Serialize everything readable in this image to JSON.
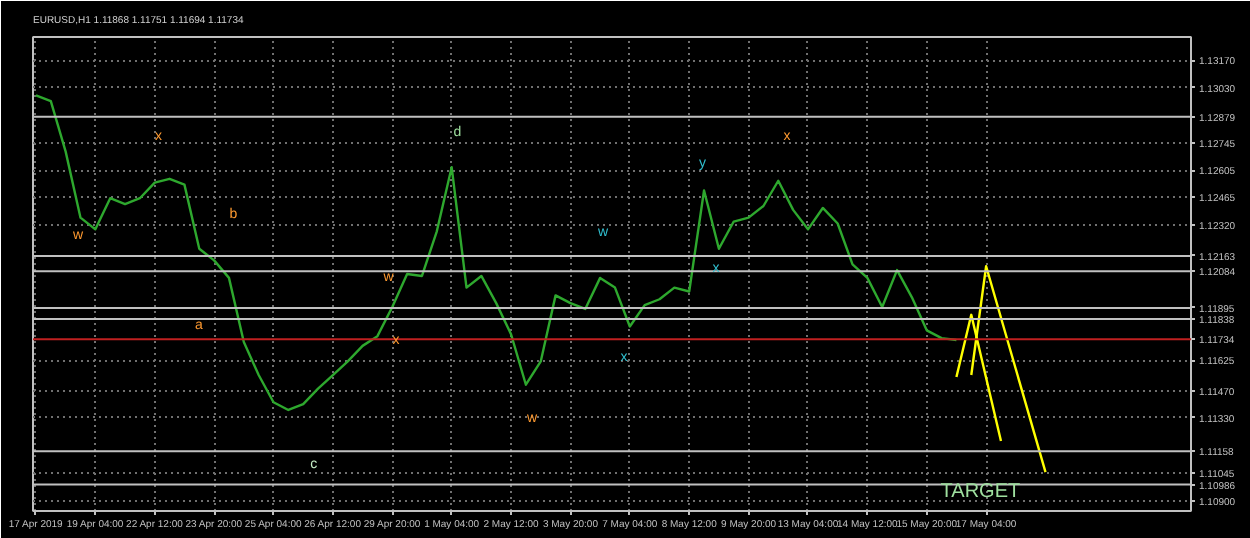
{
  "chart_data": {
    "type": "line",
    "title": "EURUSD,H1 1.11868 1.11751 1.11694 1.11734",
    "categories": [
      "17 Apr 2019",
      null,
      null,
      null,
      "19 Apr 04:00",
      null,
      null,
      null,
      "22 Apr 12:00",
      null,
      null,
      null,
      "23 Apr 20:00",
      null,
      null,
      null,
      "25 Apr 04:00",
      null,
      null,
      null,
      "26 Apr 12:00",
      null,
      null,
      null,
      "29 Apr 20:00",
      null,
      null,
      null,
      "1 May 04:00",
      null,
      null,
      null,
      "2 May 12:00",
      null,
      null,
      null,
      "3 May 20:00",
      null,
      null,
      null,
      "7 May 04:00",
      null,
      null,
      null,
      "8 May 12:00",
      null,
      null,
      null,
      "9 May 20:00",
      null,
      null,
      null,
      "13 May 04:00",
      null,
      null,
      null,
      "14 May 12:00",
      null,
      null,
      null,
      "15 May 20:00",
      null,
      null,
      null,
      "17 May 04:00",
      null,
      null,
      null,
      null,
      null,
      null,
      null,
      null,
      null,
      null,
      null,
      null,
      null
    ],
    "ylim": [
      1.1085,
      1.1329
    ],
    "yticks": [
      {
        "value": 1.1317,
        "label": "1.13170"
      },
      {
        "value": 1.1303,
        "label": "1.13030"
      },
      {
        "value": 1.12745,
        "label": "1.12745"
      },
      {
        "value": 1.12605,
        "label": "1.12605"
      },
      {
        "value": 1.12465,
        "label": "1.12465"
      },
      {
        "value": 1.1232,
        "label": "1.12320"
      },
      {
        "value": 1.11625,
        "label": "1.11625"
      },
      {
        "value": 1.1147,
        "label": "1.11470"
      },
      {
        "value": 1.1133,
        "label": "1.11330"
      },
      {
        "value": 1.11045,
        "label": "1.11045"
      },
      {
        "value": 1.109,
        "label": "1.10900"
      }
    ],
    "grid": true,
    "line_style": "solid",
    "marker": "none",
    "series": [
      {
        "color": "#2ea82e",
        "values": [
          1.1299,
          1.1296,
          1.127,
          1.1236,
          1.123,
          1.1246,
          1.1243,
          1.1246,
          1.1254,
          1.1256,
          1.1253,
          1.122,
          1.1214,
          1.1205,
          1.1172,
          1.1155,
          1.1141,
          1.1137,
          1.114,
          1.1148,
          1.1155,
          1.1162,
          1.117,
          1.1175,
          1.119,
          1.1207,
          1.1206,
          1.1229,
          1.1262,
          1.12,
          1.1206,
          1.1192,
          1.1176,
          1.115,
          1.1162,
          1.1196,
          1.1192,
          1.1189,
          1.1205,
          1.12,
          1.118,
          1.1191,
          1.1194,
          1.12,
          1.1198,
          1.125,
          1.122,
          1.1234,
          1.1236,
          1.1242,
          1.1255,
          1.124,
          1.123,
          1.1241,
          1.1233,
          1.1212,
          1.1205,
          1.119,
          1.1209,
          1.1195,
          1.1178,
          1.1174,
          1.1173,
          null,
          null,
          null,
          null,
          null,
          null,
          null,
          null,
          null,
          null,
          null,
          null,
          null,
          null,
          null
        ]
      },
      {
        "color": "#ffff00",
        "values": [
          null,
          null,
          null,
          null,
          null,
          null,
          null,
          null,
          null,
          null,
          null,
          null,
          null,
          null,
          null,
          null,
          null,
          null,
          null,
          null,
          null,
          null,
          null,
          null,
          null,
          null,
          null,
          null,
          null,
          null,
          null,
          null,
          null,
          null,
          null,
          null,
          null,
          null,
          null,
          null,
          null,
          null,
          null,
          null,
          null,
          null,
          null,
          null,
          null,
          null,
          null,
          null,
          null,
          null,
          null,
          null,
          null,
          null,
          null,
          null,
          null,
          null,
          1.1154,
          1.1186,
          null,
          1.1121,
          null,
          null,
          null,
          null,
          null,
          null,
          null,
          null,
          null,
          null,
          null,
          null
        ]
      },
      {
        "color": "#ffff00",
        "values": [
          null,
          null,
          null,
          null,
          null,
          null,
          null,
          null,
          null,
          null,
          null,
          null,
          null,
          null,
          null,
          null,
          null,
          null,
          null,
          null,
          null,
          null,
          null,
          null,
          null,
          null,
          null,
          null,
          null,
          null,
          null,
          null,
          null,
          null,
          null,
          null,
          null,
          null,
          null,
          null,
          null,
          null,
          null,
          null,
          null,
          null,
          null,
          null,
          null,
          null,
          null,
          null,
          null,
          null,
          null,
          null,
          null,
          null,
          null,
          null,
          null,
          null,
          null,
          1.1155,
          1.1211,
          null,
          null,
          null,
          1.1105,
          null,
          null,
          null,
          null,
          null,
          null,
          null,
          null,
          null
        ]
      }
    ],
    "ref_lines": [
      {
        "axis": "y",
        "value": 1.12879,
        "label": "1.12879",
        "color": "#c0c0c0"
      },
      {
        "axis": "y",
        "value": 1.12163,
        "label": "1.12163",
        "color": "#c0c0c0"
      },
      {
        "axis": "y",
        "value": 1.12084,
        "label": "1.12084",
        "color": "#c0c0c0"
      },
      {
        "axis": "y",
        "value": 1.11895,
        "label": "1.11895",
        "color": "#c0c0c0"
      },
      {
        "axis": "y",
        "value": 1.11838,
        "label": "1.11838",
        "color": "#c0c0c0"
      },
      {
        "axis": "y",
        "value": 1.11734,
        "label": "1.11734",
        "color": "#c02020"
      },
      {
        "axis": "y",
        "value": 1.11158,
        "label": "1.11158",
        "color": "#c0c0c0"
      },
      {
        "axis": "y",
        "value": 1.10986,
        "label": "1.10986",
        "color": "#c0c0c0"
      }
    ],
    "annotations": [
      "w",
      "x",
      "b",
      "a",
      "c",
      "w",
      "x",
      "d",
      "w",
      "w",
      "x",
      "y",
      "x",
      "x",
      "TARGET"
    ]
  }
}
